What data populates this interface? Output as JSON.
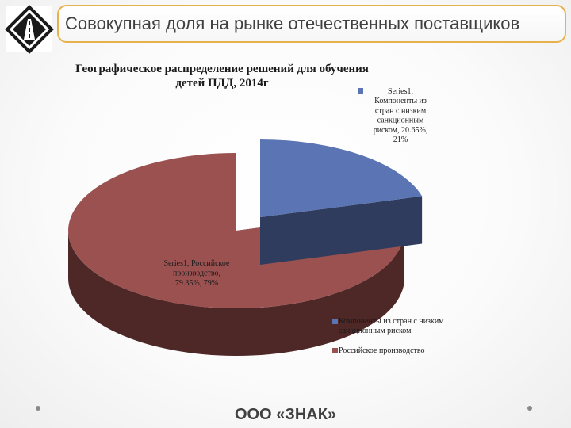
{
  "header": {
    "title": "Совокупная доля на рынке отечественных поставщиков",
    "logo_icon": "road-sign-logo-icon"
  },
  "chart_data": {
    "type": "pie",
    "style": "3d-exploded",
    "title_line1": "Географическое распределение решений для обучения",
    "title_line2": "детей ПДД, 2014г",
    "slices": [
      {
        "name": "Компоненты из стран с низким санкционным риском",
        "value": 20.65,
        "rounded": 21,
        "color": "#5b74b3",
        "side_color": "#2f3c5e",
        "label_lines": [
          "Series1,",
          "Компоненты из",
          "стран с низким",
          "санкционным",
          "риском, 20.65%,",
          "21%"
        ]
      },
      {
        "name": "Российское производство",
        "value": 79.35,
        "rounded": 79,
        "color": "#9b5150",
        "side_color": "#4e2727",
        "label_lines": [
          "Series1, Российское",
          "производство,",
          "79.35%, 79%"
        ]
      }
    ],
    "legend": [
      {
        "label_lines": [
          "Компоненты из стран с низким",
          "санкционным риском"
        ],
        "color": "#5b74b3"
      },
      {
        "label_lines": [
          "Российское производство"
        ],
        "color": "#9b5150"
      }
    ],
    "legend_position": "bottom-right"
  },
  "footer": {
    "company": "ООО «ЗНАК»"
  },
  "colors": {
    "accent": "#e7b24a",
    "text": "#404040"
  }
}
